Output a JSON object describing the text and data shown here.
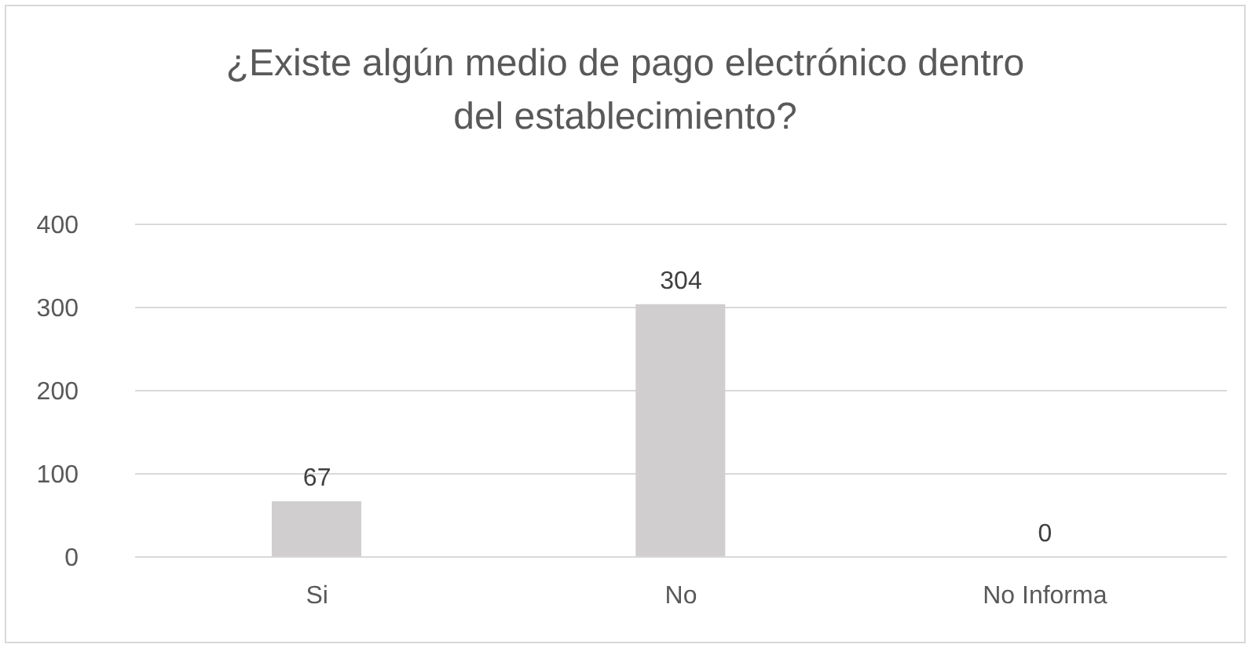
{
  "chart_data": {
    "type": "bar",
    "title": "¿Existe algún medio de pago electrónico dentro del establecimiento?",
    "categories": [
      "Si",
      "No",
      "No Informa"
    ],
    "values": [
      67,
      304,
      0
    ],
    "color": "#d0cece",
    "ylim": [
      0,
      400
    ],
    "yticks": [
      0,
      100,
      200,
      300,
      400
    ],
    "grid": "y",
    "data_labels": true
  }
}
